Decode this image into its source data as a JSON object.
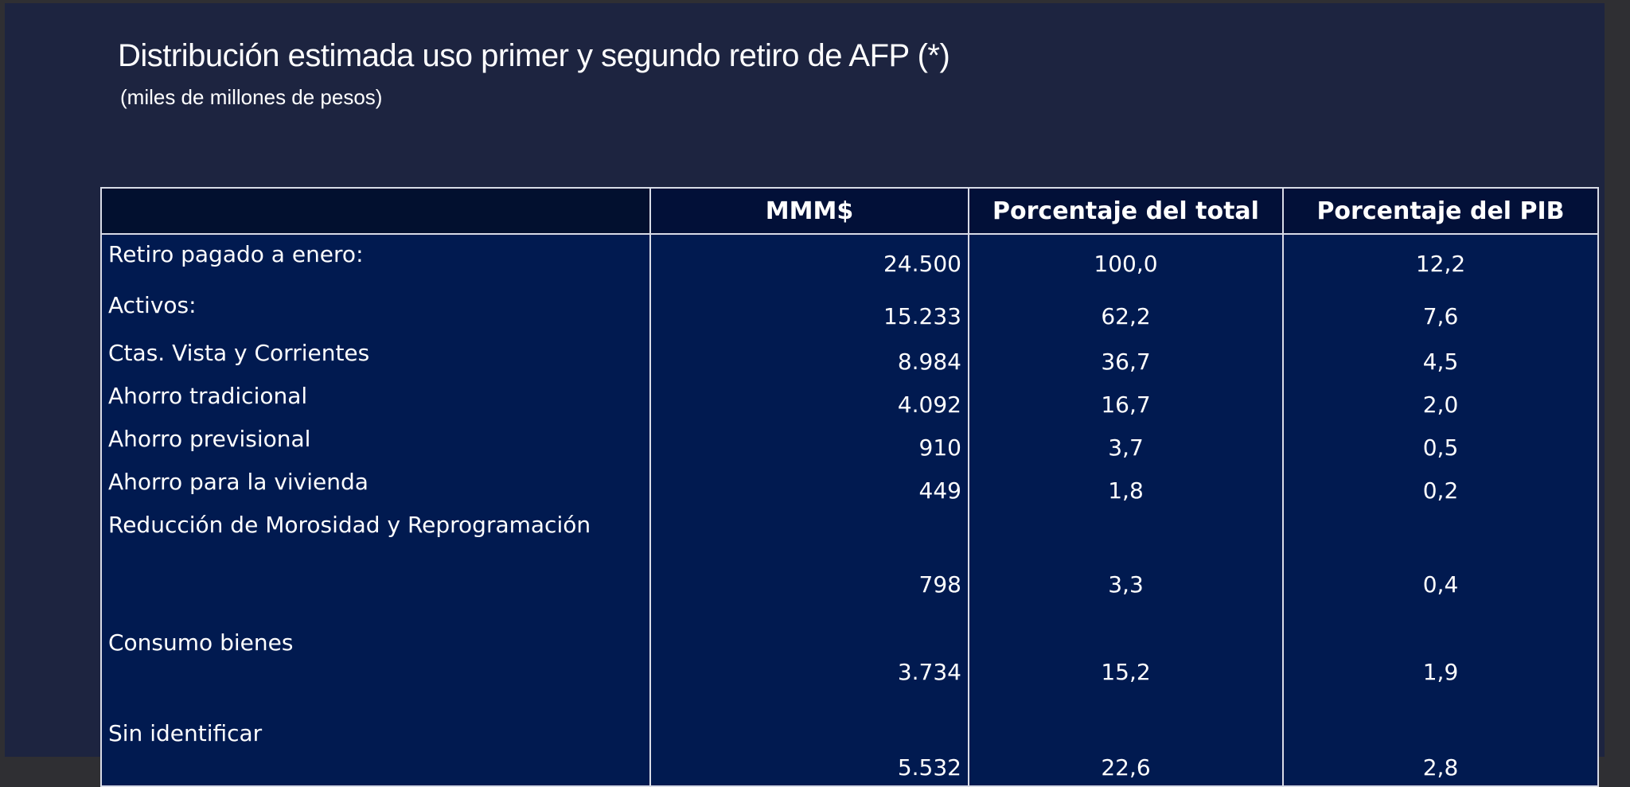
{
  "header": {
    "title": "Distribución estimada uso primer y segundo retiro de AFP (*)",
    "subtitle": "(miles de millones de pesos)"
  },
  "table": {
    "columns": [
      "",
      "MMM$",
      "Porcentaje del total",
      "Porcentaje del PIB"
    ],
    "rows": [
      {
        "label": "Retiro pagado a enero:",
        "mmm": "24.500",
        "pct_total": "100,0",
        "pct_pib": "12,2"
      },
      {
        "label": "Activos:",
        "mmm": "15.233",
        "pct_total": "62,2",
        "pct_pib": "7,6"
      },
      {
        "label": "Ctas. Vista y Corrientes",
        "mmm": "8.984",
        "pct_total": "36,7",
        "pct_pib": "4,5"
      },
      {
        "label": "Ahorro tradicional",
        "mmm": "4.092",
        "pct_total": "16,7",
        "pct_pib": "2,0"
      },
      {
        "label": "Ahorro previsional",
        "mmm": "910",
        "pct_total": "3,7",
        "pct_pib": "0,5"
      },
      {
        "label": "Ahorro para la vivienda",
        "mmm": "449",
        "pct_total": "1,8",
        "pct_pib": "0,2"
      },
      {
        "label": "Reducción de Morosidad y Reprogramación",
        "mmm": "798",
        "pct_total": "3,3",
        "pct_pib": "0,4"
      },
      {
        "label": "Consumo bienes",
        "mmm": "3.734",
        "pct_total": "15,2",
        "pct_pib": "1,9"
      },
      {
        "label": "Sin identificar",
        "mmm": "5.532",
        "pct_total": "22,6",
        "pct_pib": "2,8"
      }
    ]
  }
}
